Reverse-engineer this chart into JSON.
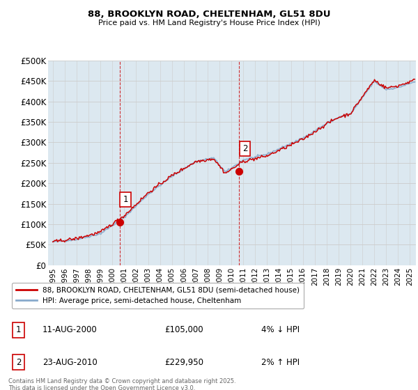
{
  "title_line1": "88, BROOKLYN ROAD, CHELTENHAM, GL51 8DU",
  "title_line2": "Price paid vs. HM Land Registry's House Price Index (HPI)",
  "ylim": [
    0,
    500000
  ],
  "yticks": [
    0,
    50000,
    100000,
    150000,
    200000,
    250000,
    300000,
    350000,
    400000,
    450000,
    500000
  ],
  "ytick_labels": [
    "£0",
    "£50K",
    "£100K",
    "£150K",
    "£200K",
    "£250K",
    "£300K",
    "£350K",
    "£400K",
    "£450K",
    "£500K"
  ],
  "xlim_start": 1994.6,
  "xlim_end": 2025.5,
  "xticks": [
    1995,
    1996,
    1997,
    1998,
    1999,
    2000,
    2001,
    2002,
    2003,
    2004,
    2005,
    2006,
    2007,
    2008,
    2009,
    2010,
    2011,
    2012,
    2013,
    2014,
    2015,
    2016,
    2017,
    2018,
    2019,
    2020,
    2021,
    2022,
    2023,
    2024,
    2025
  ],
  "red_color": "#cc0000",
  "blue_color": "#88aacc",
  "vline_color": "#cc0000",
  "grid_color": "#cccccc",
  "background_color": "#ffffff",
  "plot_bg_color": "#dce8f0",
  "legend_label_red": "88, BROOKLYN ROAD, CHELTENHAM, GL51 8DU (semi-detached house)",
  "legend_label_blue": "HPI: Average price, semi-detached house, Cheltenham",
  "purchase1_year": 2000.617,
  "purchase1_price": 105000,
  "purchase2_year": 2010.638,
  "purchase2_price": 229950,
  "annotation1_date": "11-AUG-2000",
  "annotation1_price": "£105,000",
  "annotation1_pct": "4% ↓ HPI",
  "annotation2_date": "23-AUG-2010",
  "annotation2_price": "£229,950",
  "annotation2_pct": "2% ↑ HPI",
  "footnote": "Contains HM Land Registry data © Crown copyright and database right 2025.\nThis data is licensed under the Open Government Licence v3.0."
}
